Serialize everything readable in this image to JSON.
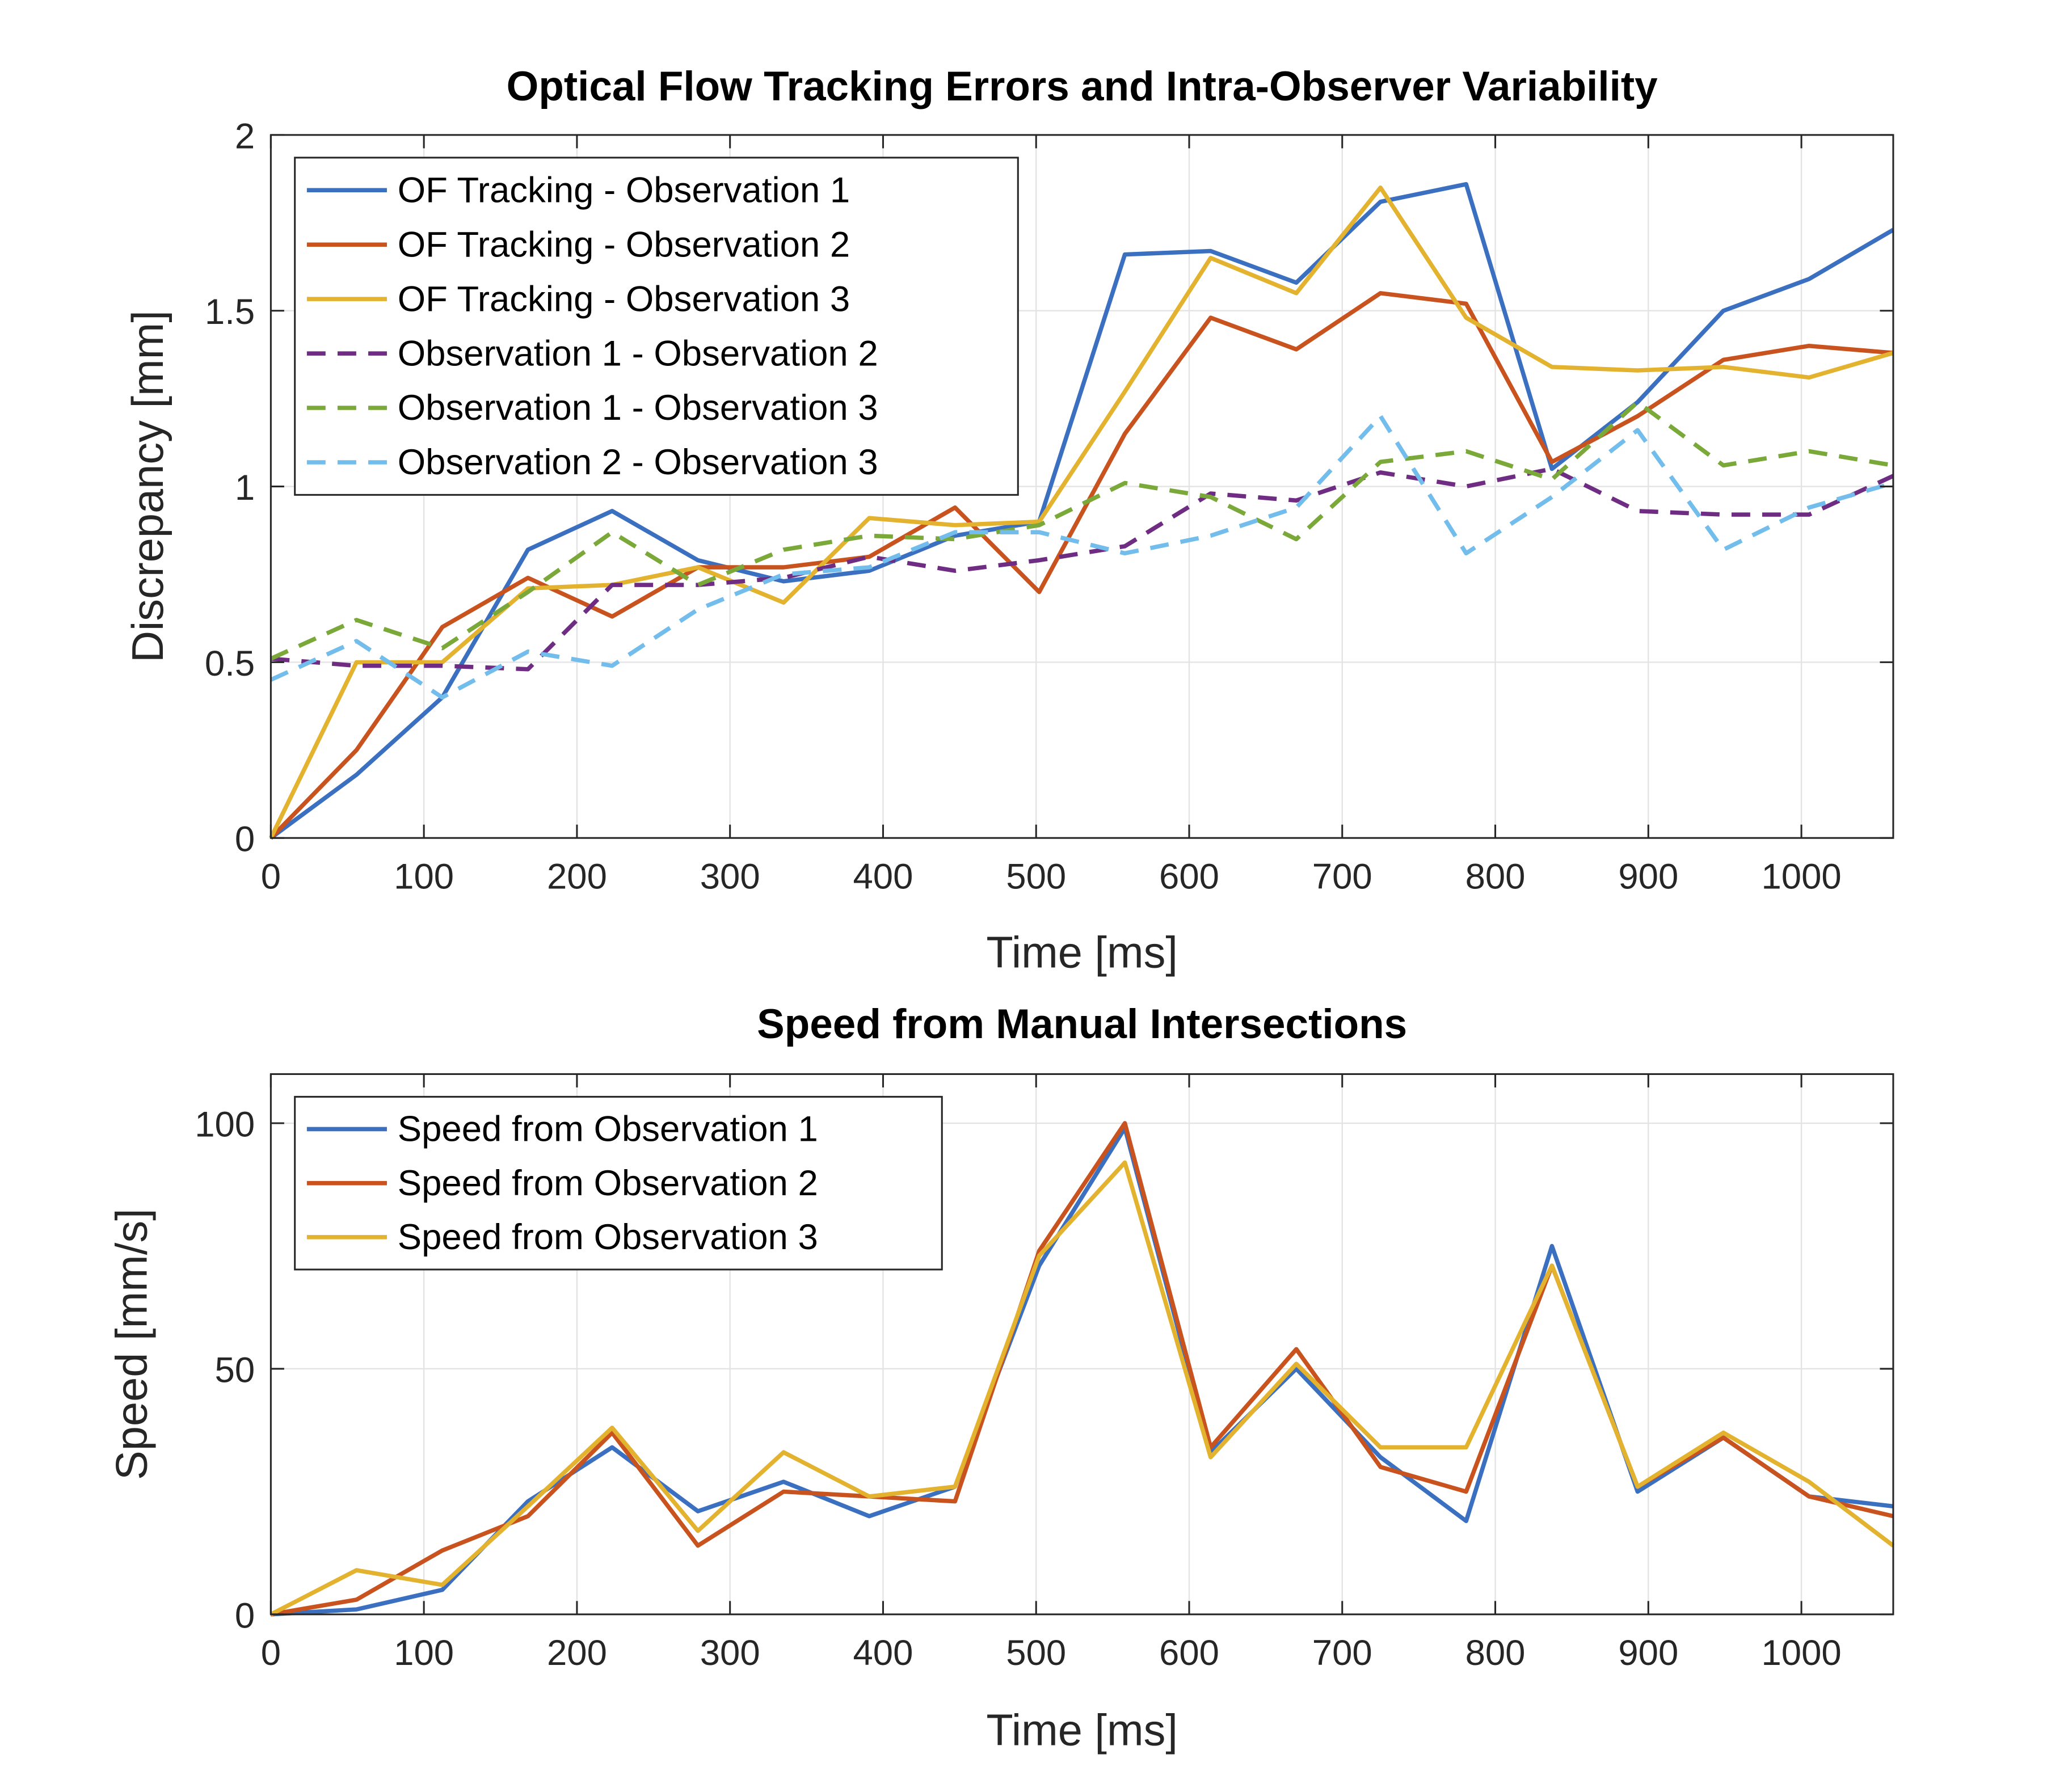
{
  "chart_data": [
    {
      "type": "line",
      "title": "Optical Flow Tracking Errors and Intra-Observer Variability",
      "xlabel": "Time [ms]",
      "ylabel": "Discrepancy [mm]",
      "xlim": [
        0,
        1060
      ],
      "ylim": [
        0,
        2
      ],
      "xticks": [
        0,
        100,
        200,
        300,
        400,
        500,
        600,
        700,
        800,
        900,
        1000
      ],
      "yticks": [
        0,
        0.5,
        1,
        1.5,
        2
      ],
      "ytick_labels": [
        "0",
        "0.5",
        "1",
        "1.5",
        "2"
      ],
      "grid": true,
      "legend_position": "top-left",
      "x": [
        0,
        56,
        112,
        168,
        223,
        279,
        335,
        391,
        447,
        502,
        558,
        614,
        670,
        725,
        781,
        837,
        893,
        949,
        1005,
        1060
      ],
      "series": [
        {
          "name": "OF Tracking - Observation 1",
          "color": "#3B6FC0",
          "dash": false,
          "values": [
            0,
            0.18,
            0.4,
            0.82,
            0.93,
            0.79,
            0.73,
            0.76,
            0.86,
            0.9,
            1.66,
            1.67,
            1.58,
            1.81,
            1.86,
            1.05,
            1.24,
            1.5,
            1.59,
            1.73
          ]
        },
        {
          "name": "OF Tracking - Observation 2",
          "color": "#C9531E",
          "dash": false,
          "values": [
            0,
            0.25,
            0.6,
            0.74,
            0.63,
            0.77,
            0.77,
            0.8,
            0.94,
            0.7,
            1.15,
            1.48,
            1.39,
            1.55,
            1.52,
            1.07,
            1.2,
            1.36,
            1.4,
            1.38
          ]
        },
        {
          "name": "OF Tracking - Observation 3",
          "color": "#E3B22E",
          "dash": false,
          "values": [
            0,
            0.5,
            0.5,
            0.71,
            0.72,
            0.77,
            0.67,
            0.91,
            0.89,
            0.9,
            1.27,
            1.65,
            1.55,
            1.85,
            1.48,
            1.34,
            1.33,
            1.34,
            1.31,
            1.38
          ]
        },
        {
          "name": "Observation 1 - Observation 2",
          "color": "#6E2C82",
          "dash": true,
          "values": [
            0.51,
            0.49,
            0.49,
            0.48,
            0.72,
            0.72,
            0.74,
            0.8,
            0.76,
            0.79,
            0.83,
            0.98,
            0.96,
            1.04,
            1.0,
            1.05,
            0.93,
            0.92,
            0.92,
            1.03
          ]
        },
        {
          "name": "Observation 1 - Observation 3",
          "color": "#7AA93A",
          "dash": true,
          "values": [
            0.51,
            0.62,
            0.54,
            0.7,
            0.87,
            0.72,
            0.82,
            0.86,
            0.85,
            0.89,
            1.01,
            0.97,
            0.85,
            1.07,
            1.1,
            1.02,
            1.24,
            1.06,
            1.1,
            1.06
          ]
        },
        {
          "name": "Observation 2 - Observation 3",
          "color": "#72BDEB",
          "dash": true,
          "values": [
            0.45,
            0.56,
            0.4,
            0.53,
            0.49,
            0.65,
            0.75,
            0.77,
            0.87,
            0.87,
            0.81,
            0.86,
            0.94,
            1.2,
            0.81,
            0.97,
            1.16,
            0.82,
            0.94,
            1.01
          ]
        }
      ]
    },
    {
      "type": "line",
      "title": "Speed from Manual Intersections",
      "xlabel": "Time [ms]",
      "ylabel": "Speed [mm/s]",
      "xlim": [
        0,
        1060
      ],
      "ylim": [
        0,
        110
      ],
      "xticks": [
        0,
        100,
        200,
        300,
        400,
        500,
        600,
        700,
        800,
        900,
        1000
      ],
      "yticks": [
        0,
        50,
        100
      ],
      "ytick_labels": [
        "0",
        "50",
        "100"
      ],
      "grid": true,
      "legend_position": "top-left",
      "x": [
        0,
        56,
        112,
        168,
        223,
        279,
        335,
        391,
        447,
        502,
        558,
        614,
        670,
        725,
        781,
        837,
        893,
        949,
        1005,
        1060
      ],
      "series": [
        {
          "name": "Speed from Observation 1",
          "color": "#3B6FC0",
          "dash": false,
          "values": [
            0,
            1,
            5,
            23,
            34,
            21,
            27,
            20,
            26,
            71,
            99,
            33,
            50,
            32,
            19,
            75,
            25,
            36,
            24,
            22
          ]
        },
        {
          "name": "Speed from Observation 2",
          "color": "#C9531E",
          "dash": false,
          "values": [
            0,
            3,
            13,
            20,
            37,
            14,
            25,
            24,
            23,
            74,
            100,
            34,
            54,
            30,
            25,
            71,
            26,
            36,
            24,
            20
          ]
        },
        {
          "name": "Speed from Observation 3",
          "color": "#E3B22E",
          "dash": false,
          "values": [
            0,
            9,
            6,
            22,
            38,
            17,
            33,
            24,
            26,
            73,
            92,
            32,
            51,
            34,
            34,
            71,
            26,
            37,
            27,
            14
          ]
        }
      ]
    }
  ]
}
